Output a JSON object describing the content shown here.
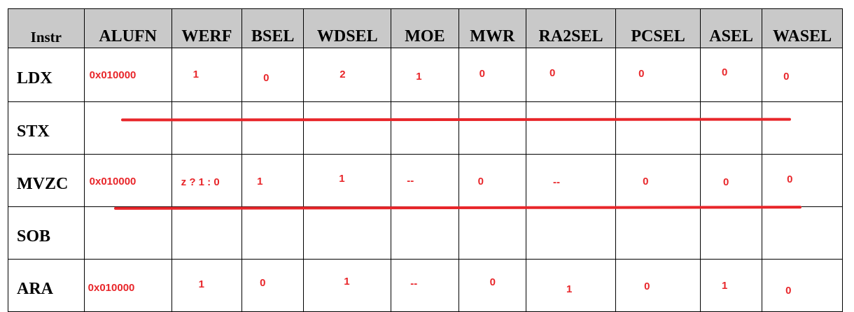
{
  "headers": [
    "Instr",
    "ALUFN",
    "WERF",
    "BSEL",
    "WDSEL",
    "MOE",
    "MWR",
    "RA2SEL",
    "PCSEL",
    "ASEL",
    "WASEL"
  ],
  "rows": [
    {
      "instr": "LDX",
      "values": [
        "0x010000",
        "1",
        "0",
        "2",
        "1",
        "0",
        "0",
        "0",
        "0",
        "0"
      ]
    },
    {
      "instr": "STX",
      "values": [],
      "struck_out": true
    },
    {
      "instr": "MVZC",
      "values": [
        "0x010000",
        "z ? 1 : 0",
        "1",
        "1",
        "--",
        "0",
        "--",
        "0",
        "0",
        "0"
      ]
    },
    {
      "instr": "SOB",
      "values": [],
      "struck_out": true
    },
    {
      "instr": "ARA",
      "values": [
        "0x010000",
        "1",
        "0",
        "1",
        "--",
        "0",
        "1",
        "0",
        "1",
        "0"
      ]
    }
  ],
  "colors": {
    "header_bg": "#c9c9c9",
    "annotation": "#e8262a",
    "border": "#000000"
  }
}
